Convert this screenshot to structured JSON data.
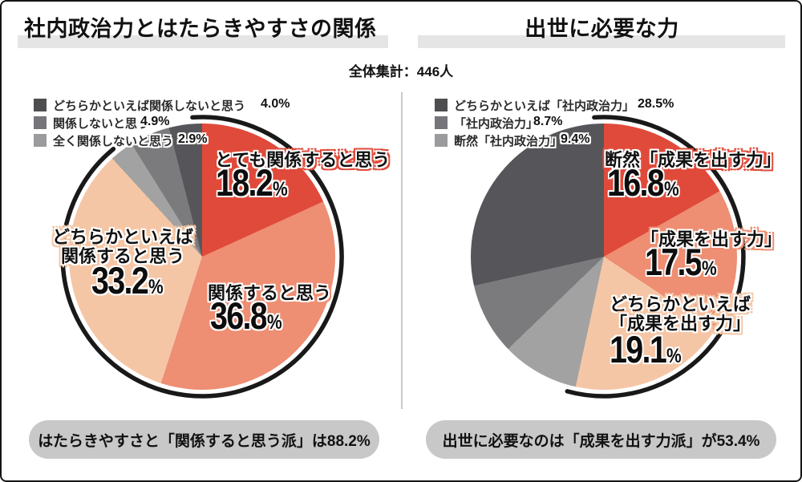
{
  "header": {
    "left_title": "社内政治力とはたらきやすさの関係",
    "right_title": "出世に必要な力",
    "total": "全体集計：446人"
  },
  "chart_data": [
    {
      "type": "pie",
      "title": "社内政治力とはたらきやすさの関係",
      "total_label": "全体集計：446人",
      "start_angle_deg": 0,
      "direction": "clockwise",
      "ring_cover_pct": 88.2,
      "slices": [
        {
          "label": "とても関係すると思う",
          "value": 18.2,
          "color": "#e04a3a"
        },
        {
          "label": "関係すると思う",
          "value": 36.8,
          "color": "#ee8e73"
        },
        {
          "label": "どちらかといえば関係すると思う",
          "value": 33.2,
          "color": "#f5c6a5"
        },
        {
          "label": "全く関係しないと思う",
          "value": 2.9,
          "color": "#a2a2a2"
        },
        {
          "label": "関係しないと思う",
          "value": 4.9,
          "color": "#7b7b7e"
        },
        {
          "label": "どちらかといえば関係しないと思う",
          "value": 4.0,
          "color": "#56565a"
        }
      ],
      "legend": [
        {
          "label": "どちらかといえば関係しないと思う",
          "pct": "4.0%",
          "color": "#4e4e50"
        },
        {
          "label": "関係しないと思う",
          "pct": "4.9%",
          "color": "#76767a"
        },
        {
          "label": "全く関係しないと思う",
          "pct": "2.9%",
          "color": "#9b9b9d"
        }
      ],
      "labels": [
        {
          "line1": "とても関係すると思う",
          "line2": "",
          "num": "18.2",
          "sym": "%"
        },
        {
          "line1": "関係すると思う",
          "line2": "",
          "num": "36.8",
          "sym": "%"
        },
        {
          "line1": "どちらかといえば",
          "line2": "関係すると思う",
          "num": "33.2",
          "sym": "%"
        }
      ],
      "summary": "はたらきやすさと「関係すると思う派」は88.2%"
    },
    {
      "type": "pie",
      "title": "出世に必要な力",
      "total_label": "全体集計：446人",
      "start_angle_deg": 0,
      "direction": "clockwise",
      "ring_cover_pct": 53.4,
      "slices": [
        {
          "label": "断然「成果を出す力」",
          "value": 16.8,
          "color": "#e04a3a"
        },
        {
          "label": "「成果を出す力」",
          "value": 17.5,
          "color": "#ee8e73"
        },
        {
          "label": "どちらかといえば「成果を出す力」",
          "value": 19.1,
          "color": "#f5c6a5"
        },
        {
          "label": "断然「社内政治力」",
          "value": 9.4,
          "color": "#a2a2a2"
        },
        {
          "label": "「社内政治力」",
          "value": 8.7,
          "color": "#7b7b7e"
        },
        {
          "label": "どちらかといえば「社内政治力」",
          "value": 28.5,
          "color": "#56565a"
        }
      ],
      "legend": [
        {
          "label": "どちらかといえば「社内政治力」",
          "pct": "28.5%",
          "color": "#4e4e50"
        },
        {
          "label": "「社内政治力」",
          "pct": "8.7%",
          "color": "#76767a"
        },
        {
          "label": "断然「社内政治力」",
          "pct": "9.4%",
          "color": "#9b9b9d"
        }
      ],
      "labels": [
        {
          "line1": "断然「成果を出す力」",
          "line2": "",
          "num": "16.8",
          "sym": "%"
        },
        {
          "line1": "「成果を出す力」",
          "line2": "",
          "num": "17.5",
          "sym": "%"
        },
        {
          "line1": "どちらかといえば",
          "line2": "「成果を出す力」",
          "num": "19.1",
          "sym": "%"
        }
      ],
      "summary": "出世に必要なのは「成果を出す力派」が53.4%"
    }
  ]
}
